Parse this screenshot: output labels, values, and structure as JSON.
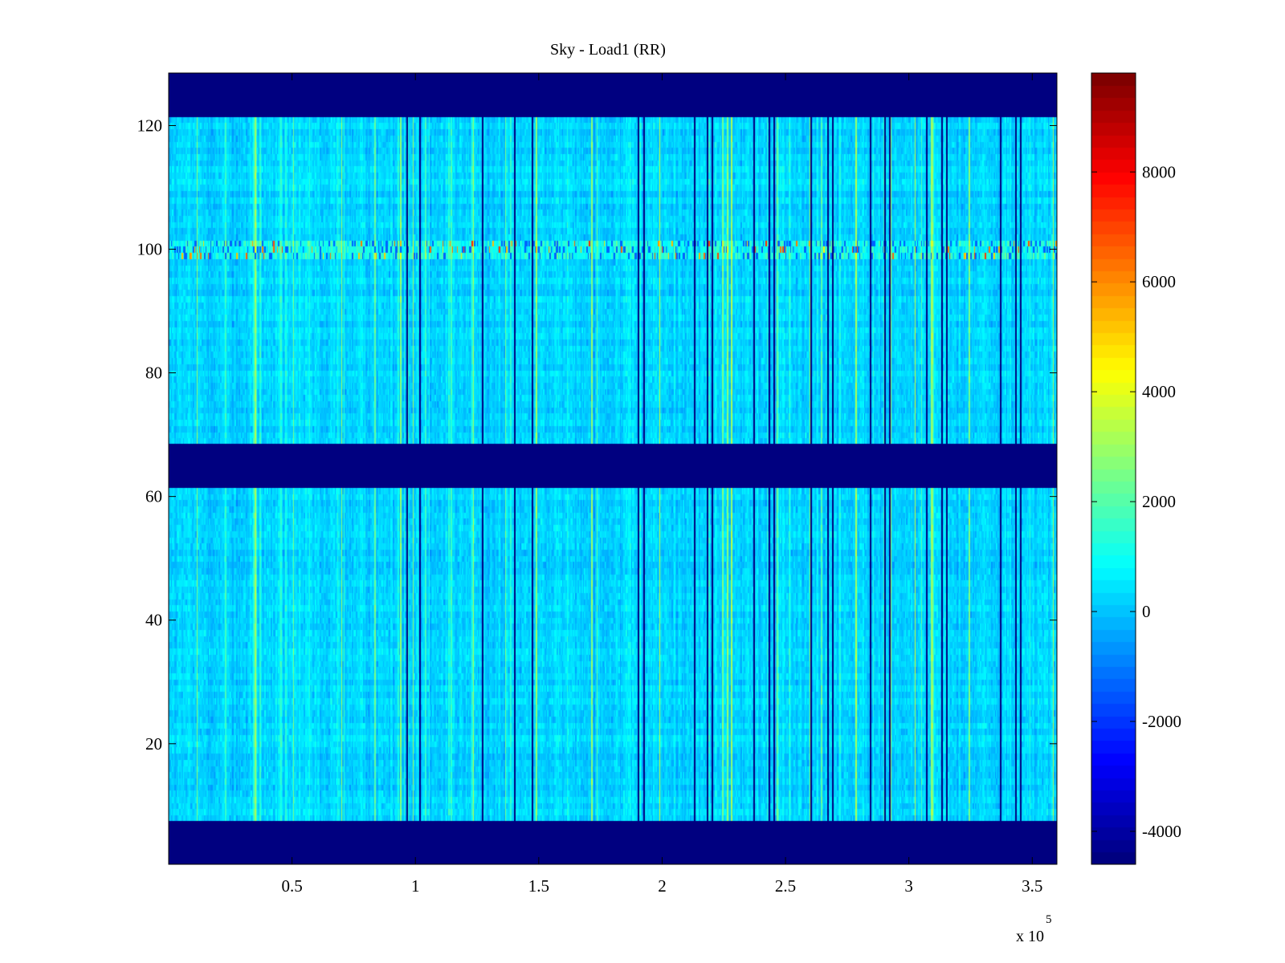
{
  "chart_data": {
    "type": "heatmap",
    "title": "Sky - Load1 (RR)",
    "xlabel": "",
    "ylabel": "",
    "x_multiplier_label": "x 10",
    "x_multiplier_exponent": "5",
    "xlim": [
      0,
      3.6
    ],
    "ylim": [
      0.5,
      128.5
    ],
    "x_ticks": [
      {
        "value": 0.5,
        "label": "0.5"
      },
      {
        "value": 1,
        "label": "1"
      },
      {
        "value": 1.5,
        "label": "1.5"
      },
      {
        "value": 2,
        "label": "2"
      },
      {
        "value": 2.5,
        "label": "2.5"
      },
      {
        "value": 3,
        "label": "3"
      },
      {
        "value": 3.5,
        "label": "3.5"
      }
    ],
    "y_ticks": [
      {
        "value": 20,
        "label": "20"
      },
      {
        "value": 40,
        "label": "40"
      },
      {
        "value": 60,
        "label": "60"
      },
      {
        "value": 80,
        "label": "80"
      },
      {
        "value": 100,
        "label": "100"
      },
      {
        "value": 120,
        "label": "120"
      }
    ],
    "colorbar": {
      "colormap": "jet",
      "range": [
        -4600,
        9800
      ],
      "ticks": [
        {
          "value": -4000,
          "label": "-4000"
        },
        {
          "value": -2000,
          "label": "-2000"
        },
        {
          "value": 0,
          "label": "0"
        },
        {
          "value": 2000,
          "label": "2000"
        },
        {
          "value": 4000,
          "label": "4000"
        },
        {
          "value": 6000,
          "label": "6000"
        },
        {
          "value": 8000,
          "label": "8000"
        }
      ]
    },
    "masked_channel_ranges": [
      [
        1,
        7
      ],
      [
        62,
        68
      ],
      [
        122,
        128
      ]
    ],
    "masked_value": -4600,
    "background_value": 200,
    "high_channel_band": {
      "channels": [
        99,
        101
      ],
      "typical_value": 1500,
      "peak_value": 7500
    },
    "dropout_columns_x": [
      0.965,
      1.015,
      1.27,
      1.4,
      1.47,
      1.9,
      1.925,
      2.13,
      2.18,
      2.2,
      2.37,
      2.43,
      2.45,
      2.6,
      2.67,
      2.69,
      2.84,
      2.9,
      2.92,
      3.07,
      3.13,
      3.15,
      3.37,
      3.43,
      3.45
    ],
    "dropout_value": -4600
  },
  "colors": {
    "frame": "#000000",
    "background": "#ffffff"
  }
}
